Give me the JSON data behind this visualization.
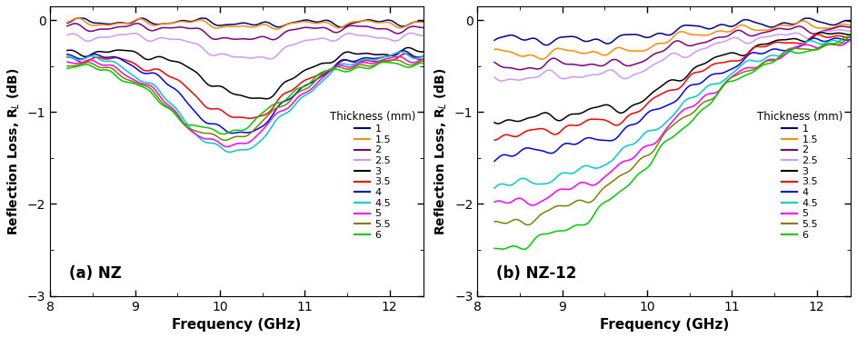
{
  "title_a": "(a) NZ",
  "title_b": "(b) NZ-12",
  "xlabel": "Frequency (GHz)",
  "ylabel": "Reflection Loss, R$_L$ (dB)",
  "xlim": [
    8.0,
    12.4
  ],
  "ylim": [
    -3.0,
    0.15
  ],
  "yticks": [
    0,
    -1,
    -2,
    -3
  ],
  "xticks": [
    8,
    9,
    10,
    11,
    12
  ],
  "legend_title": "Thickness (mm)",
  "legend_labels": [
    "1",
    "1.5",
    "2",
    "2.5",
    "3",
    "3.5",
    "4",
    "4.5",
    "5",
    "5.5",
    "6"
  ],
  "colors": [
    "#00008B",
    "#FF8C00",
    "#800080",
    "#CC99FF",
    "#000000",
    "#FF0000",
    "#0000FF",
    "#00CCCC",
    "#FF00FF",
    "#808000",
    "#00CC00"
  ],
  "freq_start": 8.2,
  "freq_end": 12.4,
  "n_points": 150
}
